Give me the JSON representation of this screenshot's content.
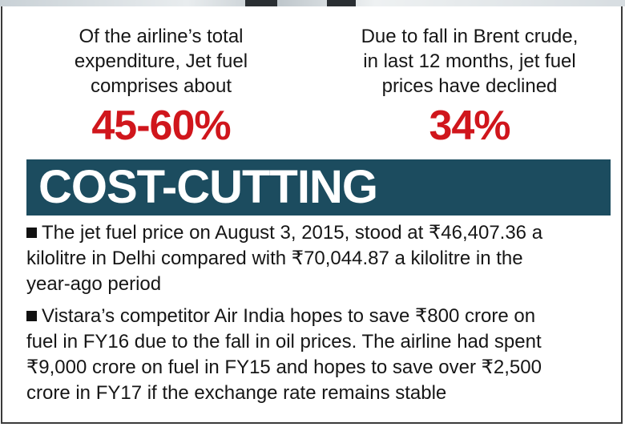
{
  "stats": [
    {
      "description_lines": [
        "Of the airline’s total",
        "expenditure, Jet fuel",
        "comprises about"
      ],
      "value": "45-60%"
    },
    {
      "description_lines": [
        "Due to fall in Brent crude,",
        "in last 12 months, jet fuel",
        "prices have declined"
      ],
      "value": "34%"
    }
  ],
  "banner": {
    "title": "COST-CUTTING"
  },
  "bullets": [
    {
      "lines": [
        "The jet fuel price on August 3, 2015, stood at ₹46,407.36 a",
        "kilolitre in Delhi compared with ₹70,044.87 a kilolitre in the",
        "year-ago period"
      ]
    },
    {
      "lines": [
        "Vistara’s competitor Air India hopes to save ₹800 crore on",
        "fuel in FY16 due to the fall in oil prices. The airline had spent",
        "₹9,000 crore on fuel in FY15 and hopes to save over ₹2,500",
        "crore in FY17 if the exchange rate remains stable"
      ]
    }
  ],
  "colors": {
    "accent_red": "#d0161c",
    "banner_bg": "#1c4c5f",
    "text": "#161616"
  }
}
